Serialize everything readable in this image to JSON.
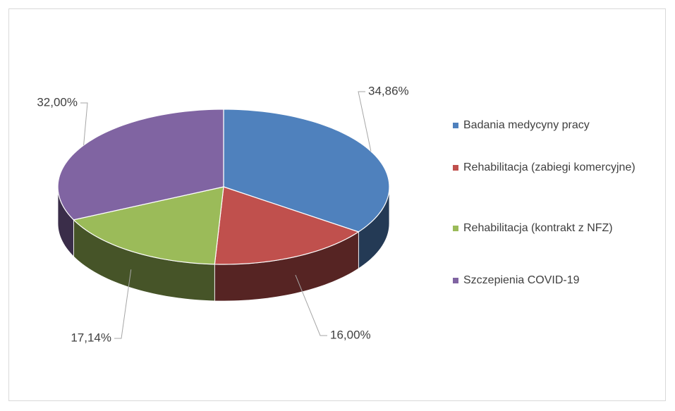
{
  "chart_data": {
    "type": "pie",
    "categories": [
      "Badania medycyny pracy",
      "Rehabilitacja (zabiegi komercyjne)",
      "Rehabilitacja (kontrakt z NFZ)",
      "Szczepienia COVID-19"
    ],
    "values": [
      34.86,
      16.0,
      17.14,
      32.0
    ],
    "value_labels": [
      "34,86%",
      "16,00%",
      "17,14%",
      "32,00%"
    ],
    "colors": [
      "#4f81bd",
      "#c0504d",
      "#9bbb59",
      "#8064a2"
    ],
    "legend": "right"
  }
}
